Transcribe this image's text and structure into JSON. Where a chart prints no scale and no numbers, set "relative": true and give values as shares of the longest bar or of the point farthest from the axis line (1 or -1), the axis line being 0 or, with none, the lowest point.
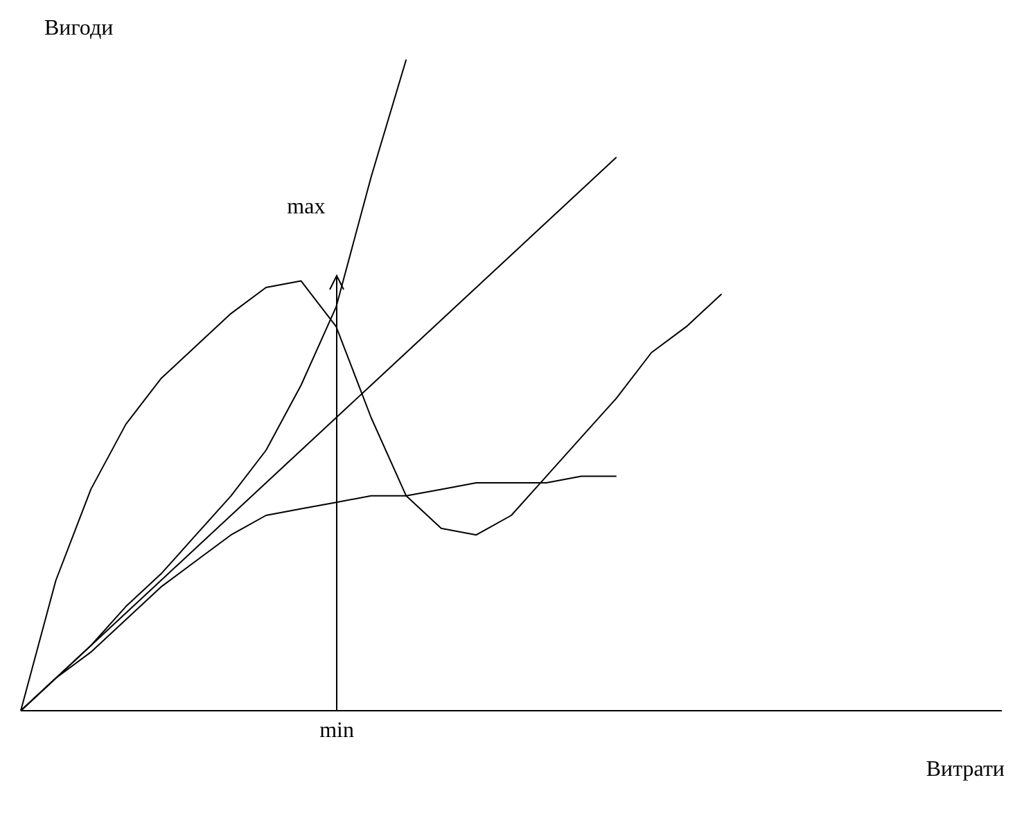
{
  "chart_data": {
    "type": "line",
    "relative": true,
    "xlabel": "Витрати",
    "ylabel": "Вигоди",
    "marker": "none",
    "categories": [
      null,
      null,
      null,
      null,
      null,
      null,
      null,
      null,
      null,
      null,
      null,
      null,
      null,
      null,
      null,
      null,
      null,
      null,
      null,
      null,
      null,
      null,
      null,
      null,
      null,
      null,
      null,
      null,
      null
    ],
    "series": [
      {
        "color": "#000000",
        "values": [
          0,
          0.05,
          0.1,
          0.16,
          0.21,
          0.27,
          0.33,
          0.4,
          0.5,
          0.62,
          0.82,
          1.0,
          null,
          null,
          null,
          null,
          null,
          null,
          null,
          null,
          null,
          null,
          null,
          null,
          null,
          null,
          null,
          null,
          null
        ]
      },
      {
        "color": "#000000",
        "values": [
          0,
          0.05,
          0.1,
          0.15,
          0.2,
          0.25,
          0.3,
          0.35,
          0.4,
          0.45,
          0.5,
          0.55,
          0.6,
          0.65,
          0.7,
          0.75,
          0.8,
          0.85,
          null,
          null,
          null,
          null,
          null,
          null,
          null,
          null,
          null,
          null,
          null
        ]
      },
      {
        "color": "#000000",
        "values": [
          0,
          0.2,
          0.34,
          0.44,
          0.51,
          0.56,
          0.61,
          0.65,
          0.66,
          0.59,
          0.45,
          0.33,
          0.28,
          0.27,
          0.3,
          0.36,
          0.42,
          0.48,
          0.55,
          0.59,
          0.64,
          null,
          null,
          null,
          null,
          null,
          null,
          null,
          null
        ]
      },
      {
        "color": "#000000",
        "values": [
          0,
          0.05,
          0.09,
          0.14,
          0.19,
          0.23,
          0.27,
          0.3,
          0.31,
          0.32,
          0.33,
          0.33,
          0.34,
          0.35,
          0.35,
          0.35,
          0.36,
          0.36,
          null,
          null,
          null,
          null,
          null,
          null,
          null,
          null,
          null,
          null,
          null
        ]
      }
    ],
    "annotations": [
      "max",
      "min"
    ]
  }
}
